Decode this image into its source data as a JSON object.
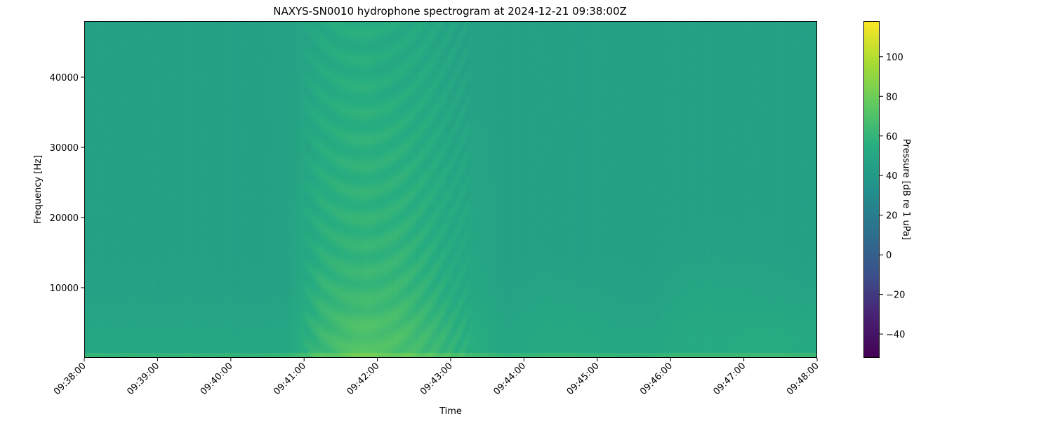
{
  "chart_data": {
    "type": "heatmap",
    "title": "NAXYS-SN0010 hydrophone spectrogram at 2024-12-21 09:38:00Z",
    "xlabel": "Time",
    "ylabel": "Frequency [Hz]",
    "colorbar_label": "Pressure [dB re 1 uPa]",
    "colormap": "viridis",
    "xlim": [
      "09:38:00",
      "09:48:00"
    ],
    "ylim": [
      0,
      48000
    ],
    "clim": [
      -52,
      118
    ],
    "x_ticks": [
      "09:38:00",
      "09:39:00",
      "09:40:00",
      "09:41:00",
      "09:42:00",
      "09:43:00",
      "09:44:00",
      "09:45:00",
      "09:46:00",
      "09:47:00",
      "09:48:00"
    ],
    "y_ticks": [
      10000,
      20000,
      30000,
      40000
    ],
    "colorbar_ticks": [
      -40,
      -20,
      0,
      20,
      40,
      60,
      80,
      100
    ],
    "time_bins": [
      "09:38:00",
      "09:38:30",
      "09:39:00",
      "09:39:30",
      "09:40:00",
      "09:40:30",
      "09:41:00",
      "09:41:30",
      "09:42:00",
      "09:42:30",
      "09:43:00",
      "09:43:30",
      "09:44:00",
      "09:44:30",
      "09:45:00",
      "09:45:30",
      "09:46:00",
      "09:46:30",
      "09:47:00",
      "09:47:30"
    ],
    "frequency_bands_hz": [
      3000,
      9000,
      15000,
      21000,
      27000,
      33000,
      39000,
      45000
    ],
    "values_db": [
      [
        50,
        50,
        50,
        50,
        50,
        50,
        63,
        71,
        69,
        63,
        56,
        50,
        52,
        52,
        50,
        50,
        53,
        53,
        54,
        53
      ],
      [
        47,
        47,
        47,
        47,
        47,
        47,
        60,
        63,
        63,
        58,
        52,
        47,
        49,
        48,
        47,
        47,
        50,
        50,
        49,
        48
      ],
      [
        46,
        46,
        46,
        46,
        46,
        46,
        57,
        60,
        60,
        56,
        50,
        46,
        46,
        46,
        46,
        46,
        47,
        47,
        47,
        46
      ],
      [
        46,
        46,
        46,
        46,
        46,
        46,
        56,
        59,
        58,
        55,
        50,
        46,
        46,
        46,
        46,
        46,
        46,
        46,
        46,
        46
      ],
      [
        46,
        46,
        46,
        46,
        46,
        46,
        55,
        58,
        57,
        54,
        49,
        46,
        46,
        46,
        46,
        46,
        46,
        46,
        46,
        46
      ],
      [
        46,
        46,
        46,
        46,
        46,
        46,
        54,
        57,
        56,
        53,
        48,
        46,
        46,
        46,
        46,
        46,
        46,
        46,
        46,
        46
      ],
      [
        46,
        46,
        46,
        46,
        46,
        46,
        53,
        56,
        54,
        52,
        47,
        46,
        46,
        46,
        46,
        46,
        46,
        46,
        46,
        46
      ],
      [
        46,
        46,
        46,
        46,
        46,
        46,
        52,
        55,
        53,
        51,
        47,
        46,
        46,
        46,
        46,
        46,
        46,
        46,
        46,
        46
      ]
    ],
    "grid": false
  }
}
